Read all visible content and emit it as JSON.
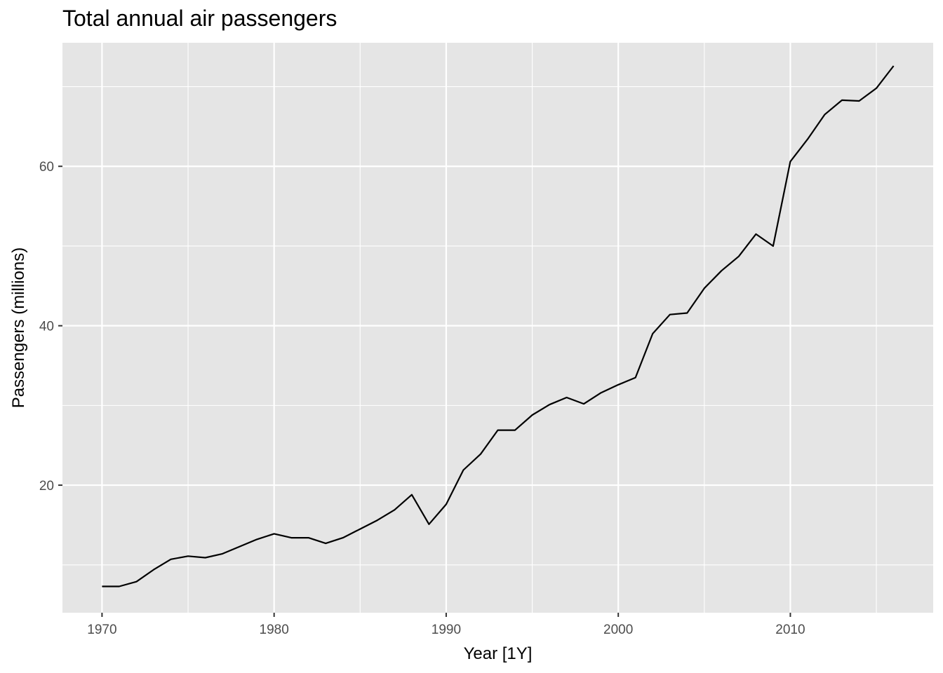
{
  "chart_data": {
    "type": "line",
    "title": "Total annual air passengers",
    "xlabel": "Year [1Y]",
    "ylabel": "Passengers (millions)",
    "xlim": [
      1967.7,
      2018.3
    ],
    "ylim": [
      4.0,
      75.5
    ],
    "x_ticks": [
      1970,
      1980,
      1990,
      2000,
      2010
    ],
    "y_ticks": [
      20,
      40,
      60
    ],
    "grid": true,
    "background": "#e5e5e5",
    "grid_major_color": "#ffffff",
    "line_color": "#000000",
    "series": [
      {
        "x": [
          1970,
          1971,
          1972,
          1973,
          1974,
          1975,
          1976,
          1977,
          1978,
          1979,
          1980,
          1981,
          1982,
          1983,
          1984,
          1985,
          1986,
          1987,
          1988,
          1989,
          1990,
          1991,
          1992,
          1993,
          1994,
          1995,
          1996,
          1997,
          1998,
          1999,
          2000,
          2001,
          2002,
          2003,
          2004,
          2005,
          2006,
          2007,
          2008,
          2009,
          2010,
          2011,
          2012,
          2013,
          2014,
          2015,
          2016
        ],
        "values": [
          7.3,
          7.3,
          7.9,
          9.4,
          10.7,
          11.1,
          10.9,
          11.4,
          12.3,
          13.2,
          13.9,
          13.4,
          13.4,
          12.7,
          13.4,
          14.5,
          15.6,
          16.9,
          18.8,
          15.1,
          17.6,
          21.9,
          23.9,
          26.9,
          26.9,
          28.8,
          30.1,
          31.0,
          30.2,
          31.6,
          32.6,
          33.5,
          39.0,
          41.4,
          41.6,
          44.7,
          46.9,
          48.7,
          51.5,
          50.0,
          60.6,
          63.4,
          66.5,
          68.3,
          68.2,
          69.8,
          72.6
        ]
      }
    ]
  }
}
